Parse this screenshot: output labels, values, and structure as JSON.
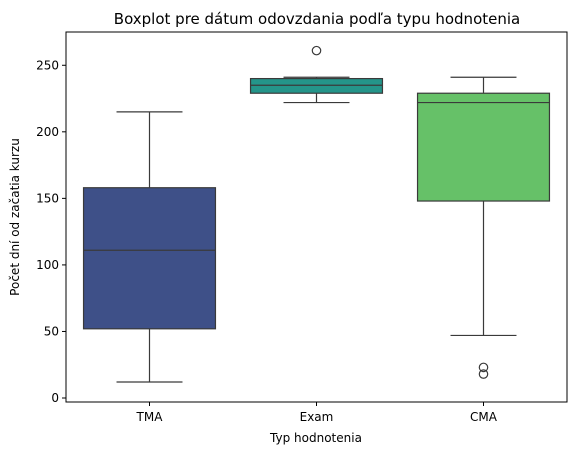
{
  "chart_data": {
    "type": "boxplot",
    "title": "Boxplot pre dátum odovzdania podľa typu hodnotenia",
    "xlabel": "Typ hodnotenia",
    "ylabel": "Počet dní od začatia kurzu",
    "ylim": [
      -3,
      275
    ],
    "yticks": [
      0,
      50,
      100,
      150,
      200,
      250
    ],
    "grid": false,
    "categories": [
      "TMA",
      "Exam",
      "CMA"
    ],
    "boxes": [
      {
        "category": "TMA",
        "whisker_low": 12,
        "q1": 52,
        "median": 111,
        "q3": 158,
        "whisker_high": 215,
        "outliers": [],
        "color": "#3e5088"
      },
      {
        "category": "Exam",
        "whisker_low": 222,
        "q1": 229,
        "median": 235,
        "q3": 240,
        "whisker_high": 241,
        "outliers": [
          261
        ],
        "color": "#24958a"
      },
      {
        "category": "CMA",
        "whisker_low": 47,
        "q1": 148,
        "median": 222,
        "q3": 229,
        "whisker_high": 241,
        "outliers": [
          23,
          18
        ],
        "color": "#66c168"
      }
    ]
  }
}
